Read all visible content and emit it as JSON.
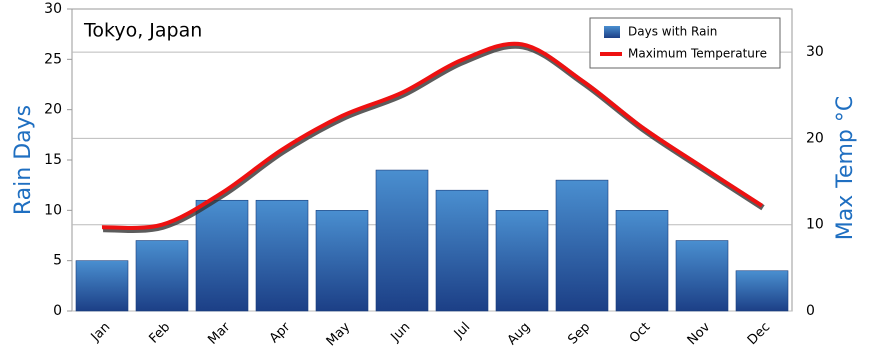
{
  "chart_data": {
    "type": "bar_line",
    "title": "Tokyo, Japan",
    "categories": [
      "Jan",
      "Feb",
      "Mar",
      "Apr",
      "May",
      "Jun",
      "Jul",
      "Aug",
      "Sep",
      "Oct",
      "Nov",
      "Dec"
    ],
    "series": [
      {
        "name": "Days with Rain",
        "type": "bar",
        "color": "#2a5da8",
        "values": [
          5,
          7,
          11,
          11,
          10,
          14,
          12,
          10,
          13,
          10,
          7,
          4
        ]
      },
      {
        "name": "Maximum Temperature",
        "type": "line",
        "axis": "y2",
        "color": "#ee1111",
        "values": [
          9.7,
          10,
          13.7,
          18.7,
          22.6,
          25.3,
          29.1,
          30.9,
          26.7,
          21.3,
          16.7,
          12.2
        ]
      }
    ],
    "y_label": "Rain Days",
    "y2_label": "Max Temp °C",
    "ylim": [
      0,
      30
    ],
    "yticks": [
      0,
      5,
      10,
      15,
      20,
      25,
      30
    ],
    "y2lim": [
      0,
      35
    ],
    "y2ticks": [
      0,
      10,
      20,
      30
    ],
    "grid": true,
    "legend": "top-right"
  }
}
